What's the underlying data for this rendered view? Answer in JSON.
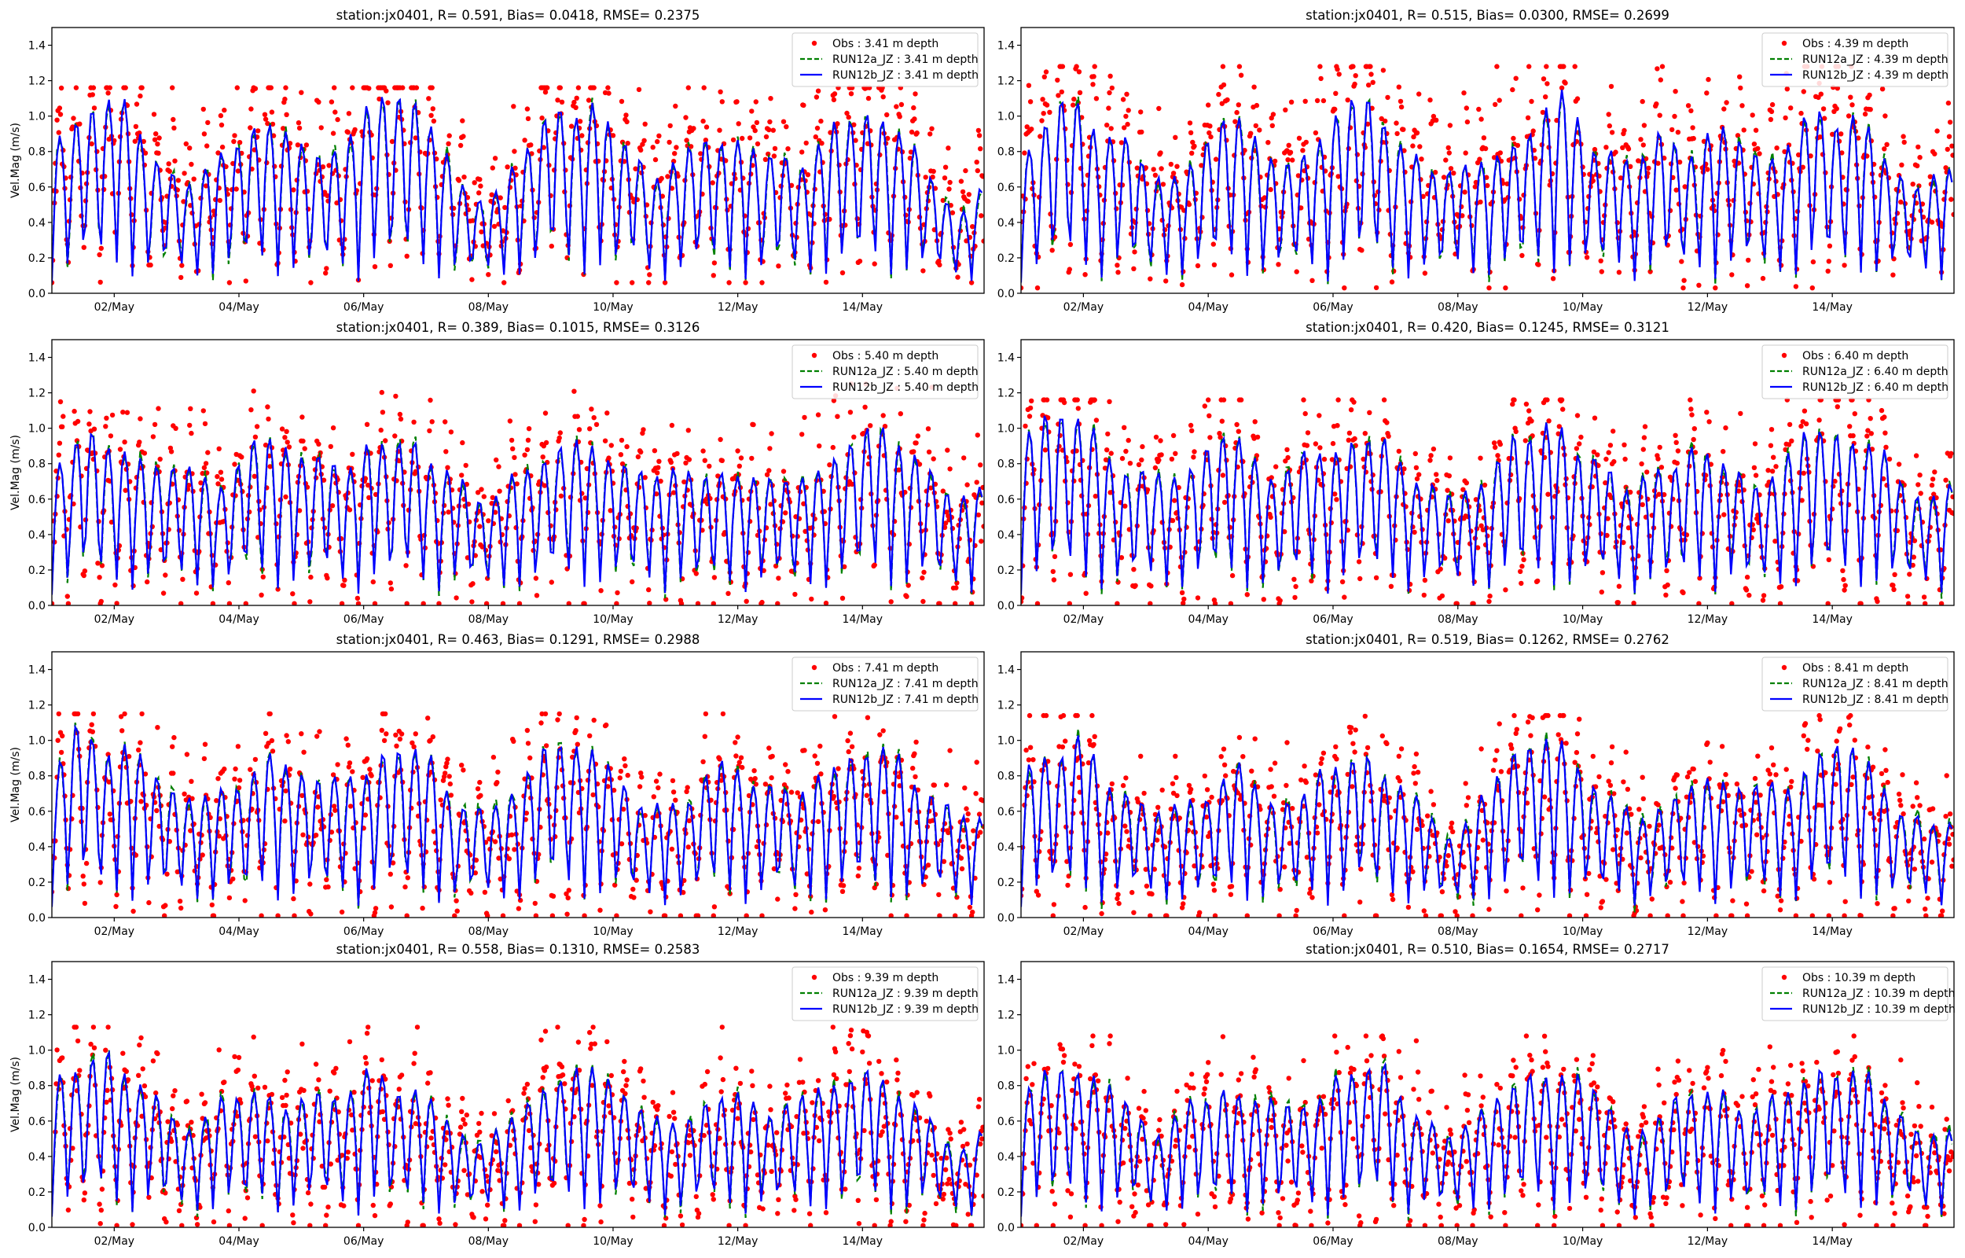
{
  "figure": {
    "layout": "4 rows x 2 columns",
    "shared_ylabel": "Vel.Mag (m/s)"
  },
  "chart_data": [
    {
      "type": "line",
      "title": "station:jx0401, R= 0.591, Bias= 0.0418, RMSE= 0.2375",
      "station": "jx0401",
      "R": 0.591,
      "Bias": 0.0418,
      "RMSE": 0.2375,
      "depth_label": "3.41 m depth",
      "xlabel": "",
      "ylabel": "Vel.Mag (m/s)",
      "ylim": [
        0,
        1.5
      ],
      "yticks": [
        0.0,
        0.2,
        0.4,
        0.6,
        0.8,
        1.0,
        1.2,
        1.4
      ],
      "xlim_days": [
        1.0,
        15.95
      ],
      "xticks": [
        "02/May",
        "04/May",
        "06/May",
        "08/May",
        "10/May",
        "12/May",
        "14/May"
      ],
      "legend": {
        "position": "top-right",
        "entries": [
          "Obs : 3.41 m depth",
          "RUN12a_JZ : 3.41 m depth",
          "RUN12b_JZ : 3.41 m depth"
        ]
      },
      "series": [
        {
          "name": "Obs",
          "style": "red dots",
          "color": "#ff0000",
          "mean": 0.6,
          "amp_range": [
            0.05,
            1.16
          ],
          "seed": 11
        },
        {
          "name": "RUN12a_JZ",
          "style": "green dashed",
          "color": "#008000",
          "mean": 0.56,
          "peak_range": [
            0.45,
            1.15
          ],
          "seed": 12
        },
        {
          "name": "RUN12b_JZ",
          "style": "blue solid",
          "color": "#0000ff",
          "mean": 0.55,
          "peak_range": [
            0.45,
            1.16
          ],
          "seed": 13
        }
      ]
    },
    {
      "type": "line",
      "title": "station:jx0401, R= 0.515, Bias= 0.0300, RMSE= 0.2699",
      "station": "jx0401",
      "R": 0.515,
      "Bias": 0.03,
      "RMSE": 0.2699,
      "depth_label": "4.39 m depth",
      "xlabel": "",
      "ylabel": "",
      "ylim": [
        0,
        1.5
      ],
      "yticks": [
        0.0,
        0.2,
        0.4,
        0.6,
        0.8,
        1.0,
        1.2,
        1.4
      ],
      "xlim_days": [
        1.0,
        15.95
      ],
      "xticks": [
        "02/May",
        "04/May",
        "06/May",
        "08/May",
        "10/May",
        "12/May",
        "14/May"
      ],
      "legend": {
        "position": "top-right",
        "entries": [
          "Obs : 4.39 m depth",
          "RUN12a_JZ : 4.39 m depth",
          "RUN12b_JZ : 4.39 m depth"
        ]
      },
      "series": [
        {
          "name": "Obs",
          "style": "red dots",
          "color": "#ff0000",
          "mean": 0.58,
          "amp_range": [
            0.02,
            1.28
          ],
          "seed": 21
        },
        {
          "name": "RUN12a_JZ",
          "style": "green dashed",
          "color": "#008000",
          "mean": 0.55,
          "peak_range": [
            0.6,
            1.1
          ],
          "seed": 22
        },
        {
          "name": "RUN12b_JZ",
          "style": "blue solid",
          "color": "#0000ff",
          "mean": 0.54,
          "peak_range": [
            0.6,
            1.1
          ],
          "seed": 23
        }
      ]
    },
    {
      "type": "line",
      "title": "station:jx0401, R= 0.389, Bias= 0.1015, RMSE= 0.3126",
      "station": "jx0401",
      "R": 0.389,
      "Bias": 0.1015,
      "RMSE": 0.3126,
      "depth_label": "5.40 m depth",
      "xlabel": "",
      "ylabel": "Vel.Mag (m/s)",
      "ylim": [
        0,
        1.5
      ],
      "yticks": [
        0.0,
        0.2,
        0.4,
        0.6,
        0.8,
        1.0,
        1.2,
        1.4
      ],
      "xlim_days": [
        1.0,
        15.95
      ],
      "xticks": [
        "02/May",
        "04/May",
        "06/May",
        "08/May",
        "10/May",
        "12/May",
        "14/May"
      ],
      "legend": {
        "position": "top-right",
        "entries": [
          "Obs : 5.40 m depth",
          "RUN12a_JZ : 5.40 m depth",
          "RUN12b_JZ : 5.40 m depth"
        ]
      },
      "series": [
        {
          "name": "Obs",
          "style": "red dots",
          "color": "#ff0000",
          "mean": 0.45,
          "amp_range": [
            0.0,
            1.25
          ],
          "seed": 31
        },
        {
          "name": "RUN12a_JZ",
          "style": "green dashed",
          "color": "#008000",
          "mean": 0.52,
          "peak_range": [
            0.55,
            1.05
          ],
          "seed": 32
        },
        {
          "name": "RUN12b_JZ",
          "style": "blue solid",
          "color": "#0000ff",
          "mean": 0.51,
          "peak_range": [
            0.55,
            1.05
          ],
          "seed": 33
        }
      ]
    },
    {
      "type": "line",
      "title": "station:jx0401, R= 0.420, Bias= 0.1245, RMSE= 0.3121",
      "station": "jx0401",
      "R": 0.42,
      "Bias": 0.1245,
      "RMSE": 0.3121,
      "depth_label": "6.40 m depth",
      "xlabel": "",
      "ylabel": "",
      "ylim": [
        0,
        1.5
      ],
      "yticks": [
        0.0,
        0.2,
        0.4,
        0.6,
        0.8,
        1.0,
        1.2,
        1.4
      ],
      "xlim_days": [
        1.0,
        15.95
      ],
      "xticks": [
        "02/May",
        "04/May",
        "06/May",
        "08/May",
        "10/May",
        "12/May",
        "14/May"
      ],
      "legend": {
        "position": "top-right",
        "entries": [
          "Obs : 6.40 m depth",
          "RUN12a_JZ : 6.40 m depth",
          "RUN12b_JZ : 6.40 m depth"
        ]
      },
      "series": [
        {
          "name": "Obs",
          "style": "red dots",
          "color": "#ff0000",
          "mean": 0.42,
          "amp_range": [
            0.0,
            1.16
          ],
          "seed": 41
        },
        {
          "name": "RUN12a_JZ",
          "style": "green dashed",
          "color": "#008000",
          "mean": 0.52,
          "peak_range": [
            0.55,
            1.05
          ],
          "seed": 42
        },
        {
          "name": "RUN12b_JZ",
          "style": "blue solid",
          "color": "#0000ff",
          "mean": 0.51,
          "peak_range": [
            0.55,
            1.05
          ],
          "seed": 43
        }
      ]
    },
    {
      "type": "line",
      "title": "station:jx0401, R= 0.463, Bias= 0.1291, RMSE= 0.2988",
      "station": "jx0401",
      "R": 0.463,
      "Bias": 0.1291,
      "RMSE": 0.2988,
      "depth_label": "7.41 m depth",
      "xlabel": "",
      "ylabel": "Vel.Mag (m/s)",
      "ylim": [
        0,
        1.5
      ],
      "yticks": [
        0.0,
        0.2,
        0.4,
        0.6,
        0.8,
        1.0,
        1.2,
        1.4
      ],
      "xlim_days": [
        1.0,
        15.95
      ],
      "xticks": [
        "02/May",
        "04/May",
        "06/May",
        "08/May",
        "10/May",
        "12/May",
        "14/May"
      ],
      "legend": {
        "position": "top-right",
        "entries": [
          "Obs : 7.41 m depth",
          "RUN12a_JZ : 7.41 m depth",
          "RUN12b_JZ : 7.41 m depth"
        ]
      },
      "series": [
        {
          "name": "Obs",
          "style": "red dots",
          "color": "#ff0000",
          "mean": 0.38,
          "amp_range": [
            0.0,
            1.15
          ],
          "seed": 51
        },
        {
          "name": "RUN12a_JZ",
          "style": "green dashed",
          "color": "#008000",
          "mean": 0.48,
          "peak_range": [
            0.5,
            1.05
          ],
          "seed": 52
        },
        {
          "name": "RUN12b_JZ",
          "style": "blue solid",
          "color": "#0000ff",
          "mean": 0.47,
          "peak_range": [
            0.5,
            1.05
          ],
          "seed": 53
        }
      ]
    },
    {
      "type": "line",
      "title": "station:jx0401, R= 0.519, Bias= 0.1262, RMSE= 0.2762",
      "station": "jx0401",
      "R": 0.519,
      "Bias": 0.1262,
      "RMSE": 0.2762,
      "depth_label": "8.41 m depth",
      "xlabel": "",
      "ylabel": "",
      "ylim": [
        0,
        1.5
      ],
      "yticks": [
        0.0,
        0.2,
        0.4,
        0.6,
        0.8,
        1.0,
        1.2,
        1.4
      ],
      "xlim_days": [
        1.0,
        15.95
      ],
      "xticks": [
        "02/May",
        "04/May",
        "06/May",
        "08/May",
        "10/May",
        "12/May",
        "14/May"
      ],
      "legend": {
        "position": "top-right",
        "entries": [
          "Obs : 8.41 m depth",
          "RUN12a_JZ : 8.41 m depth",
          "RUN12b_JZ : 8.41 m depth"
        ]
      },
      "series": [
        {
          "name": "Obs",
          "style": "red dots",
          "color": "#ff0000",
          "mean": 0.35,
          "amp_range": [
            0.0,
            1.14
          ],
          "seed": 61
        },
        {
          "name": "RUN12a_JZ",
          "style": "green dashed",
          "color": "#008000",
          "mean": 0.45,
          "peak_range": [
            0.45,
            1.0
          ],
          "seed": 62
        },
        {
          "name": "RUN12b_JZ",
          "style": "blue solid",
          "color": "#0000ff",
          "mean": 0.44,
          "peak_range": [
            0.45,
            1.0
          ],
          "seed": 63
        }
      ]
    },
    {
      "type": "line",
      "title": "station:jx0401, R= 0.558, Bias= 0.1310, RMSE= 0.2583",
      "station": "jx0401",
      "R": 0.558,
      "Bias": 0.131,
      "RMSE": 0.2583,
      "depth_label": "9.39 m depth",
      "xlabel": "",
      "ylabel": "Vel.Mag (m/s)",
      "ylim": [
        0,
        1.5
      ],
      "yticks": [
        0.0,
        0.2,
        0.4,
        0.6,
        0.8,
        1.0,
        1.2,
        1.4
      ],
      "xlim_days": [
        1.0,
        15.95
      ],
      "xticks": [
        "02/May",
        "04/May",
        "06/May",
        "08/May",
        "10/May",
        "12/May",
        "14/May"
      ],
      "legend": {
        "position": "top-right",
        "entries": [
          "Obs : 9.39 m depth",
          "RUN12a_JZ : 9.39 m depth",
          "RUN12b_JZ : 9.39 m depth"
        ]
      },
      "series": [
        {
          "name": "Obs",
          "style": "red dots",
          "color": "#ff0000",
          "mean": 0.32,
          "amp_range": [
            0.0,
            1.13
          ],
          "seed": 71
        },
        {
          "name": "RUN12a_JZ",
          "style": "green dashed",
          "color": "#008000",
          "mean": 0.42,
          "peak_range": [
            0.45,
            0.95
          ],
          "seed": 72
        },
        {
          "name": "RUN12b_JZ",
          "style": "blue solid",
          "color": "#0000ff",
          "mean": 0.41,
          "peak_range": [
            0.45,
            0.95
          ],
          "seed": 73
        }
      ]
    },
    {
      "type": "line",
      "title": "station:jx0401, R= 0.510, Bias= 0.1654, RMSE= 0.2717",
      "station": "jx0401",
      "R": 0.51,
      "Bias": 0.1654,
      "RMSE": 0.2717,
      "depth_label": "10.39 m depth",
      "xlabel": "",
      "ylabel": "",
      "ylim": [
        0,
        1.5
      ],
      "yticks": [
        0.0,
        0.2,
        0.4,
        0.6,
        0.8,
        1.0,
        1.2,
        1.4
      ],
      "xlim_days": [
        1.0,
        15.95
      ],
      "xticks": [
        "02/May",
        "04/May",
        "06/May",
        "08/May",
        "10/May",
        "12/May",
        "14/May"
      ],
      "legend": {
        "position": "top-right",
        "entries": [
          "Obs : 10.39 m depth",
          "RUN12a_JZ : 10.39 m depth",
          "RUN12b_JZ : 10.39 m depth"
        ]
      },
      "series": [
        {
          "name": "Obs",
          "style": "red dots",
          "color": "#ff0000",
          "mean": 0.28,
          "amp_range": [
            0.0,
            1.08
          ],
          "seed": 81
        },
        {
          "name": "RUN12a_JZ",
          "style": "green dashed",
          "color": "#008000",
          "mean": 0.4,
          "peak_range": [
            0.45,
            0.95
          ],
          "seed": 82
        },
        {
          "name": "RUN12b_JZ",
          "style": "blue solid",
          "color": "#0000ff",
          "mean": 0.39,
          "peak_range": [
            0.45,
            0.95
          ],
          "seed": 83
        }
      ]
    }
  ]
}
